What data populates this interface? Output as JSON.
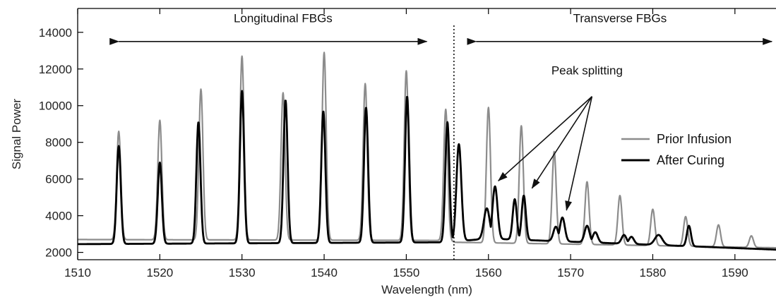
{
  "chart_data": {
    "type": "line",
    "title": "",
    "xlabel": "Wavelength (nm)",
    "ylabel": "Signal Power",
    "xlim": [
      1510,
      1595
    ],
    "ylim": [
      1600,
      15300
    ],
    "x_ticks": [
      1510,
      1520,
      1530,
      1540,
      1550,
      1560,
      1570,
      1580,
      1590
    ],
    "y_ticks": [
      2000,
      4000,
      6000,
      8000,
      10000,
      12000,
      14000
    ],
    "grid": false,
    "legend_position": "right",
    "series": [
      {
        "name": "Prior Infusion",
        "color": "#8c8c8c",
        "baseline": [
          [
            1510,
            2700
          ],
          [
            1555,
            2650
          ],
          [
            1556,
            2550
          ],
          [
            1570,
            2450
          ],
          [
            1595,
            2250
          ]
        ],
        "peaks": [
          [
            1515.0,
            8600,
            0.25
          ],
          [
            1520.0,
            9200,
            0.25
          ],
          [
            1525.0,
            10900,
            0.25
          ],
          [
            1530.0,
            12700,
            0.25
          ],
          [
            1535.0,
            10700,
            0.25
          ],
          [
            1540.0,
            12900,
            0.25
          ],
          [
            1545.0,
            11200,
            0.25
          ],
          [
            1550.0,
            11900,
            0.25
          ],
          [
            1554.8,
            9800,
            0.25
          ],
          [
            1560.0,
            9900,
            0.25
          ],
          [
            1564.0,
            8900,
            0.25
          ],
          [
            1568.0,
            7500,
            0.25
          ],
          [
            1572.0,
            5850,
            0.25
          ],
          [
            1576.0,
            5100,
            0.25
          ],
          [
            1580.0,
            4350,
            0.25
          ],
          [
            1584.0,
            3950,
            0.25
          ],
          [
            1588.0,
            3500,
            0.25
          ],
          [
            1592.0,
            2900,
            0.25
          ]
        ]
      },
      {
        "name": "After Curing",
        "color": "#000000",
        "baseline": [
          [
            1510,
            2450
          ],
          [
            1555,
            2550
          ],
          [
            1556,
            2600
          ],
          [
            1560,
            2750
          ],
          [
            1575,
            2500
          ],
          [
            1595,
            2150
          ]
        ],
        "peaks": [
          [
            1515.0,
            7800,
            0.25
          ],
          [
            1520.0,
            6900,
            0.25
          ],
          [
            1524.7,
            9100,
            0.25
          ],
          [
            1530.0,
            10800,
            0.25
          ],
          [
            1535.3,
            10300,
            0.25
          ],
          [
            1539.9,
            9700,
            0.25
          ],
          [
            1545.1,
            9900,
            0.25
          ],
          [
            1550.1,
            10500,
            0.25
          ],
          [
            1555.0,
            9100,
            0.25
          ],
          [
            1556.4,
            7900,
            0.3
          ],
          [
            1559.8,
            4400,
            0.35
          ],
          [
            1560.8,
            5600,
            0.3
          ],
          [
            1563.2,
            4900,
            0.25
          ],
          [
            1564.3,
            5100,
            0.25
          ],
          [
            1568.2,
            3400,
            0.3
          ],
          [
            1569.0,
            3900,
            0.3
          ],
          [
            1572.0,
            3450,
            0.3
          ],
          [
            1573.0,
            3100,
            0.3
          ],
          [
            1576.5,
            2950,
            0.3
          ],
          [
            1577.4,
            2850,
            0.3
          ],
          [
            1580.7,
            2950,
            0.45
          ],
          [
            1584.4,
            3450,
            0.25
          ]
        ]
      }
    ],
    "divider_x": 1555.8,
    "annotations": [
      {
        "text": "Longitudinal FBGs",
        "x_text": 1535.0,
        "y_text": 14550,
        "arrow_from": 1515.0,
        "arrow_to": 1552.5,
        "arrow_y": 13500
      },
      {
        "text": "Transverse FBGs",
        "x_text": 1576.0,
        "y_text": 14550,
        "arrow_from": 1558.5,
        "arrow_to": 1594.5,
        "arrow_y": 13500
      },
      {
        "text": "Peak splitting",
        "x_text": 1572.0,
        "y_text": 11700,
        "origin": [
          1572.6,
          10500
        ],
        "targets": [
          [
            1561.2,
            5900
          ],
          [
            1565.3,
            5500
          ],
          [
            1569.5,
            4300
          ]
        ]
      }
    ],
    "legend_labels": [
      "Prior Infusion",
      "After Curing"
    ]
  }
}
